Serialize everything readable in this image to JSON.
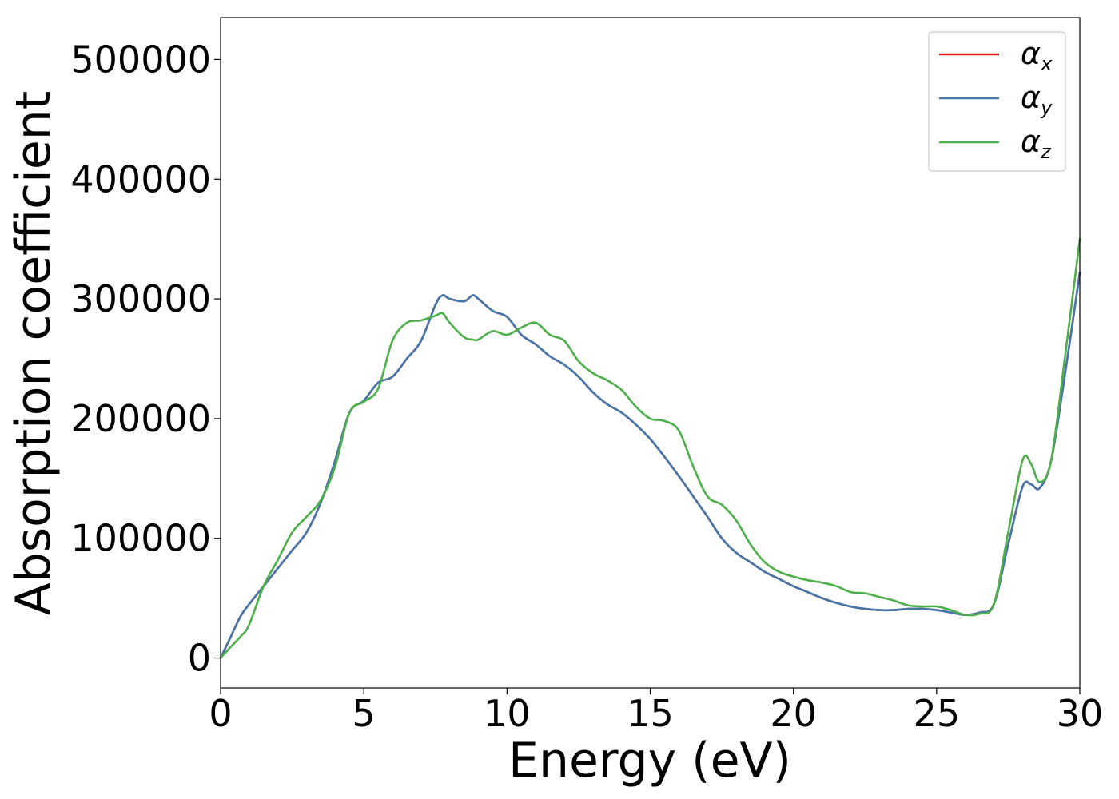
{
  "chart_data": {
    "type": "line",
    "title": "",
    "xlabel": "Energy (eV)",
    "ylabel": "Absorption coefficient",
    "xlim": [
      0,
      30
    ],
    "ylim": [
      -25000,
      535000
    ],
    "xticks": [
      0,
      5,
      10,
      15,
      20,
      25,
      30
    ],
    "xtick_labels": [
      "0",
      "5",
      "10",
      "15",
      "20",
      "25",
      "30"
    ],
    "yticks": [
      0,
      100000,
      200000,
      300000,
      400000,
      500000
    ],
    "ytick_labels": [
      "0",
      "100000",
      "200000",
      "300000",
      "400000",
      "500000"
    ],
    "grid": false,
    "legend_position": "top-right",
    "x": [
      0,
      0.3,
      0.7,
      1.0,
      1.5,
      2.0,
      2.5,
      3.0,
      3.5,
      4.0,
      4.5,
      5.0,
      5.5,
      6.0,
      6.5,
      7.0,
      7.5,
      7.75,
      8.0,
      8.5,
      8.8,
      9.0,
      9.5,
      10.0,
      10.5,
      11.0,
      11.5,
      12.0,
      12.5,
      13.0,
      13.5,
      14.0,
      14.5,
      15.0,
      15.5,
      16.0,
      16.5,
      17.0,
      17.5,
      18.0,
      18.5,
      19.0,
      19.5,
      20.0,
      20.5,
      21.0,
      21.5,
      22.0,
      22.5,
      23.0,
      23.5,
      24.0,
      24.5,
      25.0,
      25.5,
      26.0,
      26.5,
      27.0,
      27.5,
      28.0,
      28.3,
      28.6,
      29.0,
      29.5,
      30.0
    ],
    "series": [
      {
        "name": "α",
        "subscript": "x",
        "color": "#e41a1c",
        "values": [
          0,
          15000,
          35000,
          45000,
          60000,
          75000,
          90000,
          105000,
          130000,
          165000,
          205000,
          215000,
          230000,
          235000,
          250000,
          265000,
          295000,
          303000,
          300000,
          298000,
          303000,
          300000,
          290000,
          285000,
          270000,
          262000,
          252000,
          245000,
          235000,
          222000,
          212000,
          205000,
          195000,
          183000,
          168000,
          152000,
          135000,
          118000,
          100000,
          88000,
          80000,
          72000,
          66000,
          60000,
          55000,
          50000,
          46000,
          43000,
          41000,
          40000,
          40000,
          41000,
          41000,
          40000,
          38000,
          36000,
          38000,
          45000,
          95000,
          143000,
          145000,
          142000,
          165000,
          240000,
          322000
        ]
      },
      {
        "name": "α",
        "subscript": "y",
        "color": "#4477aa",
        "values": [
          0,
          15000,
          35000,
          45000,
          60000,
          75000,
          90000,
          105000,
          130000,
          165000,
          205000,
          215000,
          230000,
          235000,
          250000,
          265000,
          295000,
          303000,
          300000,
          298000,
          303000,
          300000,
          290000,
          285000,
          270000,
          262000,
          252000,
          245000,
          235000,
          222000,
          212000,
          205000,
          195000,
          183000,
          168000,
          152000,
          135000,
          118000,
          100000,
          88000,
          80000,
          72000,
          66000,
          60000,
          55000,
          50000,
          46000,
          43000,
          41000,
          40000,
          40000,
          41000,
          41000,
          40000,
          38000,
          36000,
          38000,
          45000,
          95000,
          143000,
          145000,
          142000,
          165000,
          240000,
          322000
        ]
      },
      {
        "name": "α",
        "subscript": "z",
        "color": "#4daf4a",
        "values": [
          0,
          8000,
          18000,
          28000,
          60000,
          82000,
          105000,
          118000,
          132000,
          160000,
          205000,
          214000,
          225000,
          265000,
          280000,
          282000,
          286000,
          288000,
          280000,
          268000,
          266000,
          266000,
          273000,
          270000,
          276000,
          280000,
          270000,
          265000,
          248000,
          238000,
          232000,
          224000,
          210000,
          200000,
          198000,
          190000,
          160000,
          135000,
          128000,
          115000,
          95000,
          80000,
          72000,
          68000,
          65000,
          63000,
          60000,
          55000,
          54000,
          51000,
          48000,
          44000,
          43000,
          43000,
          40000,
          36000,
          37000,
          45000,
          105000,
          165000,
          162000,
          147000,
          165000,
          255000,
          350000
        ]
      }
    ]
  }
}
